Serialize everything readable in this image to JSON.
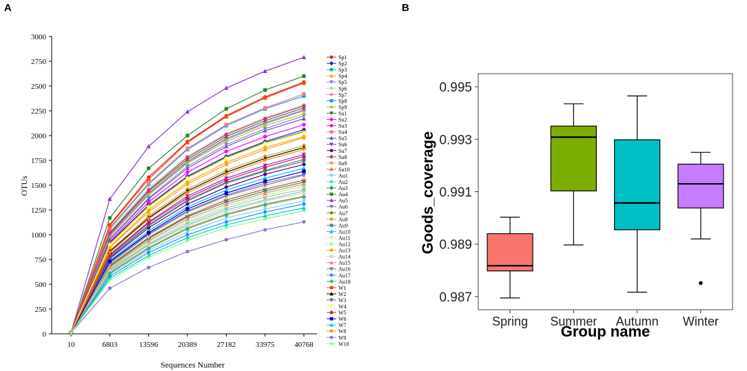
{
  "panels": {
    "a_label": "A",
    "b_label": "B"
  },
  "chart_data": [
    {
      "type": "line",
      "title": "",
      "xlabel": "Sequences Number",
      "ylabel": "OTUs",
      "x": [
        10,
        6803,
        13596,
        20389,
        27182,
        33975,
        40768
      ],
      "x_tick_labels": [
        "10",
        "6803",
        "13596",
        "20389",
        "27182",
        "33975",
        "40768"
      ],
      "ylim": [
        0,
        3000
      ],
      "y_ticks": [
        0,
        250,
        500,
        750,
        1000,
        1250,
        1500,
        1750,
        2000,
        2250,
        2500,
        2750,
        3000
      ],
      "legend_position": "right",
      "series": [
        {
          "name": "Sp1",
          "color": "#e41a1c",
          "marker": "circle",
          "values": [
            10,
            1100,
            1580,
            1940,
            2200,
            2390,
            2540
          ]
        },
        {
          "name": "Sp2",
          "color": "#1f1fd6",
          "marker": "diamond",
          "values": [
            10,
            920,
            1300,
            1590,
            1790,
            1940,
            2060
          ]
        },
        {
          "name": "Sp3",
          "color": "#20b2aa",
          "marker": "square",
          "values": [
            10,
            1000,
            1420,
            1740,
            1970,
            2130,
            2260
          ]
        },
        {
          "name": "Sp4",
          "color": "#f4a020",
          "marker": "triangle-up",
          "values": [
            10,
            870,
            1230,
            1510,
            1710,
            1860,
            1980
          ]
        },
        {
          "name": "Sp5",
          "color": "#9370db",
          "marker": "triangle-down",
          "values": [
            10,
            960,
            1370,
            1690,
            1910,
            2070,
            2200
          ]
        },
        {
          "name": "Sp6",
          "color": "#90ee90",
          "marker": "circle",
          "values": [
            10,
            1040,
            1470,
            1790,
            2020,
            2180,
            2310
          ]
        },
        {
          "name": "Sp7",
          "color": "#ff69b4",
          "marker": "star",
          "values": [
            10,
            990,
            1410,
            1730,
            1960,
            2120,
            2250
          ]
        },
        {
          "name": "Sp8",
          "color": "#1e90ff",
          "marker": "square",
          "values": [
            10,
            1060,
            1510,
            1860,
            2100,
            2270,
            2400
          ]
        },
        {
          "name": "Sp9",
          "color": "#9acd32",
          "marker": "star",
          "values": [
            10,
            980,
            1400,
            1720,
            1940,
            2100,
            2220
          ]
        },
        {
          "name": "Su1",
          "color": "#556b2f",
          "marker": "triangle-down",
          "values": [
            10,
            1010,
            1440,
            1760,
            1990,
            2150,
            2280
          ]
        },
        {
          "name": "Su2",
          "color": "#ff00ff",
          "marker": "diamond",
          "values": [
            10,
            930,
            1330,
            1630,
            1840,
            1990,
            2110
          ]
        },
        {
          "name": "Su3",
          "color": "#ff1493",
          "marker": "circle",
          "values": [
            10,
            1020,
            1450,
            1780,
            2010,
            2170,
            2300
          ]
        },
        {
          "name": "Su4",
          "color": "#f08080",
          "marker": "square",
          "values": [
            10,
            1070,
            1520,
            1870,
            2110,
            2280,
            2420
          ]
        },
        {
          "name": "Su5",
          "color": "#6a5acd",
          "marker": "triangle-up",
          "values": [
            10,
            950,
            1360,
            1670,
            1890,
            2050,
            2170
          ]
        },
        {
          "name": "Su6",
          "color": "#8a2be2",
          "marker": "triangle-down",
          "values": [
            10,
            800,
            1130,
            1390,
            1570,
            1700,
            1810
          ]
        },
        {
          "name": "Su7",
          "color": "#4b0082",
          "marker": "circle",
          "values": [
            10,
            760,
            1070,
            1310,
            1480,
            1610,
            1710
          ]
        },
        {
          "name": "Su8",
          "color": "#a0522d",
          "marker": "diamond",
          "values": [
            10,
            690,
            970,
            1190,
            1350,
            1460,
            1550
          ]
        },
        {
          "name": "Su9",
          "color": "#d2b48c",
          "marker": "square",
          "values": [
            10,
            650,
            910,
            1120,
            1270,
            1380,
            1460
          ]
        },
        {
          "name": "Su10",
          "color": "#cd853f",
          "marker": "triangle-up",
          "values": [
            10,
            620,
            870,
            1070,
            1210,
            1310,
            1390
          ]
        },
        {
          "name": "Au1",
          "color": "#87cefa",
          "marker": "triangle-down",
          "values": [
            10,
            600,
            840,
            1030,
            1170,
            1260,
            1340
          ]
        },
        {
          "name": "Au2",
          "color": "#40e0d0",
          "marker": "circle",
          "values": [
            10,
            640,
            900,
            1100,
            1250,
            1350,
            1440
          ]
        },
        {
          "name": "Au3",
          "color": "#2e8b57",
          "marker": "diamond",
          "values": [
            10,
            680,
            960,
            1180,
            1330,
            1440,
            1530
          ]
        },
        {
          "name": "Au4",
          "color": "#228b22",
          "marker": "square",
          "values": [
            10,
            1170,
            1670,
            2000,
            2270,
            2460,
            2600
          ]
        },
        {
          "name": "Au5",
          "color": "#8a2be2",
          "marker": "triangle-up",
          "values": [
            10,
            1360,
            1890,
            2240,
            2480,
            2650,
            2790
          ]
        },
        {
          "name": "Au6",
          "color": "#7b68ee",
          "marker": "triangle-down",
          "values": [
            10,
            720,
            1010,
            1240,
            1400,
            1520,
            1610
          ]
        },
        {
          "name": "Au7",
          "color": "#6b8e23",
          "marker": "circle",
          "values": [
            10,
            910,
            1290,
            1580,
            1780,
            1930,
            2040
          ]
        },
        {
          "name": "Au8",
          "color": "#daa520",
          "marker": "diamond",
          "values": [
            10,
            840,
            1190,
            1460,
            1650,
            1790,
            1900
          ]
        },
        {
          "name": "Au9",
          "color": "#4682b4",
          "marker": "square",
          "values": [
            10,
            780,
            1100,
            1350,
            1530,
            1650,
            1760
          ]
        },
        {
          "name": "Au10",
          "color": "#00bfff",
          "marker": "triangle-up",
          "values": [
            10,
            740,
            1040,
            1280,
            1450,
            1570,
            1670
          ]
        },
        {
          "name": "Au11",
          "color": "#ffdab9",
          "marker": "triangle-down",
          "values": [
            10,
            700,
            980,
            1210,
            1370,
            1480,
            1570
          ]
        },
        {
          "name": "Au12",
          "color": "#98fb98",
          "marker": "circle",
          "values": [
            10,
            660,
            930,
            1140,
            1290,
            1400,
            1490
          ]
        },
        {
          "name": "Au13",
          "color": "#ffa500",
          "marker": "diamond",
          "values": [
            10,
            880,
            1250,
            1530,
            1730,
            1880,
            1990
          ]
        },
        {
          "name": "Au14",
          "color": "#d3d3d3",
          "marker": "square",
          "values": [
            10,
            630,
            890,
            1090,
            1230,
            1340,
            1420
          ]
        },
        {
          "name": "Au15",
          "color": "#ff7f7f",
          "marker": "triangle-up",
          "values": [
            10,
            670,
            940,
            1160,
            1310,
            1420,
            1510
          ]
        },
        {
          "name": "Au16",
          "color": "#708090",
          "marker": "triangle-down",
          "values": [
            10,
            710,
            1000,
            1230,
            1390,
            1500,
            1600
          ]
        },
        {
          "name": "Au17",
          "color": "#1e90ff",
          "marker": "circle",
          "values": [
            10,
            580,
            820,
            1000,
            1130,
            1230,
            1310
          ]
        },
        {
          "name": "Au18",
          "color": "#3cb371",
          "marker": "diamond",
          "values": [
            10,
            610,
            860,
            1060,
            1200,
            1300,
            1380
          ]
        },
        {
          "name": "W1",
          "color": "#ff4500",
          "marker": "square",
          "values": [
            10,
            1090,
            1560,
            1930,
            2190,
            2380,
            2530
          ]
        },
        {
          "name": "W2",
          "color": "#000000",
          "marker": "triangle-up",
          "values": [
            10,
            830,
            1170,
            1440,
            1630,
            1770,
            1880
          ]
        },
        {
          "name": "W3",
          "color": "#696969",
          "marker": "triangle-down",
          "values": [
            10,
            770,
            1090,
            1340,
            1520,
            1640,
            1740
          ]
        },
        {
          "name": "W4",
          "color": "#ffff66",
          "marker": "circle",
          "values": [
            10,
            900,
            1280,
            1570,
            1770,
            1920,
            2030
          ]
        },
        {
          "name": "W5",
          "color": "#dc143c",
          "marker": "diamond",
          "values": [
            10,
            790,
            1120,
            1370,
            1550,
            1680,
            1790
          ]
        },
        {
          "name": "W6",
          "color": "#0000cd",
          "marker": "square",
          "values": [
            10,
            730,
            1020,
            1260,
            1420,
            1540,
            1640
          ]
        },
        {
          "name": "W7",
          "color": "#00ced1",
          "marker": "triangle-up",
          "values": [
            10,
            560,
            790,
            970,
            1100,
            1190,
            1270
          ]
        },
        {
          "name": "W8",
          "color": "#ff8c00",
          "marker": "triangle-down",
          "values": [
            10,
            820,
            1160,
            1420,
            1610,
            1750,
            1860
          ]
        },
        {
          "name": "W9",
          "color": "#9370db",
          "marker": "circle",
          "values": [
            10,
            460,
            670,
            830,
            950,
            1050,
            1130
          ]
        },
        {
          "name": "W10",
          "color": "#7fff7f",
          "marker": "star",
          "values": [
            10,
            540,
            770,
            940,
            1070,
            1160,
            1240
          ]
        }
      ]
    },
    {
      "type": "box",
      "title": "",
      "xlabel": "Group name",
      "ylabel": "Goods_coverage",
      "ylim": [
        0.9865,
        0.9955
      ],
      "y_ticks": [
        0.987,
        0.989,
        0.991,
        0.993,
        0.995
      ],
      "y_tick_labels": [
        "0.987",
        "0.989",
        "0.991",
        "0.993",
        "0.995"
      ],
      "categories": [
        "Spring",
        "Summer",
        "Autumn",
        "Winter"
      ],
      "boxes": [
        {
          "name": "Spring",
          "color": "#f8766d",
          "whisker_low": 0.98695,
          "q1": 0.98798,
          "median": 0.98818,
          "q3": 0.9894,
          "whisker_high": 0.99003,
          "outliers": []
        },
        {
          "name": "Summer",
          "color": "#7cae00",
          "whisker_low": 0.98897,
          "q1": 0.99103,
          "median": 0.99308,
          "q3": 0.9935,
          "whisker_high": 0.99435,
          "outliers": []
        },
        {
          "name": "Autumn",
          "color": "#00bfc4",
          "whisker_low": 0.98717,
          "q1": 0.98955,
          "median": 0.99057,
          "q3": 0.99298,
          "whisker_high": 0.99465,
          "outliers": []
        },
        {
          "name": "Winter",
          "color": "#c77cff",
          "whisker_low": 0.9892,
          "q1": 0.99038,
          "median": 0.9913,
          "q3": 0.99205,
          "whisker_high": 0.9925,
          "outliers": [
            0.98752
          ]
        }
      ]
    }
  ]
}
